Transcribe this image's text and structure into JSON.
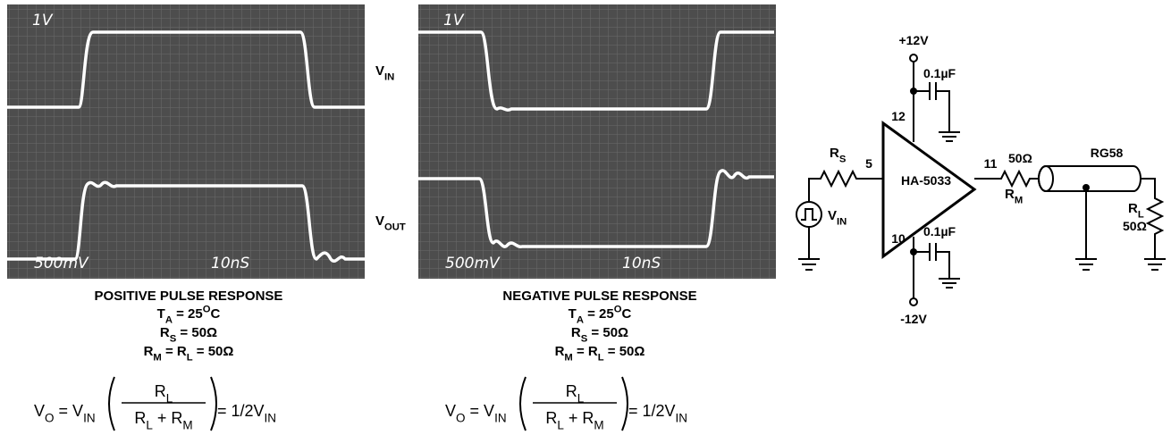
{
  "figures": [
    {
      "scope": {
        "volts_top": "1V",
        "volts_bottom": "500mV",
        "time": "10nS"
      },
      "title": "POSITIVE PULSE RESPONSE",
      "temperature": [
        "T",
        "A",
        " = 25",
        "O",
        "C"
      ],
      "rs": [
        "R",
        "S",
        " = 50Ω"
      ],
      "rm": [
        "R",
        "M",
        " = R",
        "L",
        " = 50Ω"
      ],
      "formula": {
        "left": [
          "V",
          "O",
          " = V",
          "IN"
        ],
        "numerator": [
          "R",
          "L"
        ],
        "denominator": [
          "R",
          "L",
          " + R",
          "M"
        ],
        "right": [
          "= 1/2V",
          "IN"
        ]
      }
    },
    {
      "scope": {
        "volts_top": "1V",
        "volts_bottom": "500mV",
        "time": "10nS"
      },
      "title": "NEGATIVE PULSE RESPONSE",
      "temperature": [
        "T",
        "A",
        " = 25",
        "O",
        "C"
      ],
      "rs": [
        "R",
        "S",
        " = 50Ω"
      ],
      "rm": [
        "R",
        "M",
        " = R",
        "L",
        " = 50Ω"
      ],
      "formula": {
        "left": [
          "V",
          "O",
          " = V",
          "IN"
        ],
        "numerator": [
          "R",
          "L"
        ],
        "denominator": [
          "R",
          "L",
          " + R",
          "M"
        ],
        "right": [
          "= 1/2V",
          "IN"
        ]
      }
    }
  ],
  "signal_labels": {
    "vin": [
      "V",
      "IN"
    ],
    "vout": [
      "V",
      "OUT"
    ]
  },
  "circuit": {
    "supply_positive": "+12V",
    "supply_negative": "-12V",
    "cap_top": "0.1µF",
    "cap_bottom": "0.1µF",
    "pin_top": "12",
    "pin_input": "5",
    "pin_output": "11",
    "pin_bottom": "10",
    "amplifier": "HA-5033",
    "rs_label": [
      "R",
      "S"
    ],
    "source_label": [
      "V",
      "IN"
    ],
    "rm_value": "50Ω",
    "rm_label": [
      "R",
      "M"
    ],
    "cable": "RG58",
    "rl_label": [
      "R",
      "L"
    ],
    "rl_value": "50Ω"
  }
}
